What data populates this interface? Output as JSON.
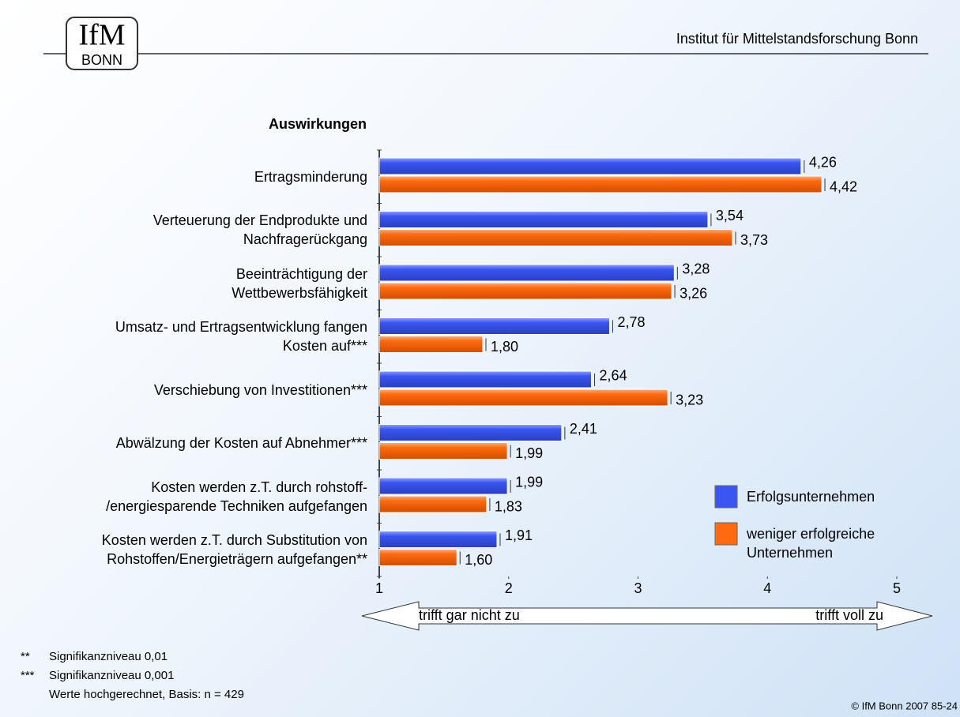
{
  "header": {
    "logo_top": "IfM",
    "logo_bottom": "BONN",
    "institute": "Institut für Mittelstandsforschung Bonn"
  },
  "chart_data": {
    "type": "bar",
    "orientation": "horizontal",
    "title": "Auswirkungen",
    "categories": [
      "Ertragsminderung",
      "Verteuerung der Endprodukte und\nNachfragerückgang",
      "Beeinträchtigung der\nWettbewerbsfähigkeit",
      "Umsatz- und Ertragsentwicklung fangen\nKosten auf***",
      "Verschiebung von Investitionen***",
      "Abwälzung der Kosten auf Abnehmer***",
      "Kosten werden z.T. durch rohstoff-\n/energiesparende Techniken aufgefangen",
      "Kosten werden z.T. durch Substitution von\nRohstoffen/Energieträgern aufgefangen**"
    ],
    "series": [
      {
        "name": "Erfolgsunternehmen",
        "color": "#3a55f0",
        "values": [
          4.26,
          3.54,
          3.28,
          2.78,
          2.64,
          2.41,
          1.99,
          1.91
        ],
        "value_labels": [
          "4,26",
          "3,54",
          "3,28",
          "2,78",
          "2,64",
          "2,41",
          "1,99",
          "1,91"
        ]
      },
      {
        "name": "weniger erfolgreiche\nUnternehmen",
        "color": "#ff6a10",
        "values": [
          4.42,
          3.73,
          3.26,
          1.8,
          3.23,
          1.99,
          1.83,
          1.6
        ],
        "value_labels": [
          "4,42",
          "3,73",
          "3,26",
          "1,80",
          "3,23",
          "1,99",
          "1,83",
          "1,60"
        ]
      }
    ],
    "xlim": [
      1,
      5
    ],
    "xticks": [
      1,
      2,
      3,
      4,
      5
    ],
    "legend": "lower right",
    "scale_low": "trifft gar nicht zu",
    "scale_high": "trifft voll zu"
  },
  "footnotes": [
    {
      "mark": "**",
      "text": "Signifikanzniveau 0,01"
    },
    {
      "mark": "***",
      "text": "Signifikanzniveau 0,001"
    },
    {
      "mark": "",
      "text": "Werte hochgerechnet, Basis: n = 429"
    }
  ],
  "footer": "© IfM Bonn 2007  85-24"
}
